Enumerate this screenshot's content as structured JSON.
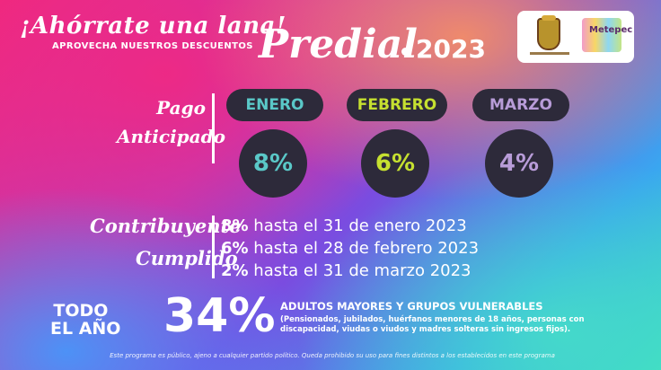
{
  "header": {
    "slogan": "¡Ahórrate una lana!",
    "subtitle": "APROVECHA NUESTROS DESCUENTOS",
    "title": "Predial",
    "year": "2023",
    "logo_text": "Metepec"
  },
  "pago_anticipado": {
    "label_line1": "Pago",
    "label_line2": "Anticipado",
    "months": [
      {
        "name": "ENERO",
        "discount": "8%",
        "color": "#5ac8c8"
      },
      {
        "name": "FEBRERO",
        "discount": "6%",
        "color": "#c6e030"
      },
      {
        "name": "MARZO",
        "discount": "4%",
        "color": "#b89cd8"
      }
    ]
  },
  "contribuyente_cumplido": {
    "label_line1": "Contribuyente",
    "label_line2": "Cumplido",
    "lines": [
      {
        "pct": "8%",
        "text": " hasta el 31 de enero 2023"
      },
      {
        "pct": "6%",
        "text": " hasta el 28 de febrero 2023"
      },
      {
        "pct": "2%",
        "text": " hasta el 31 de marzo 2023"
      }
    ]
  },
  "todo_el_ano": {
    "line1": "TODO",
    "line2": "EL AÑO",
    "percent": "34%",
    "heading": "ADULTOS MAYORES Y GRUPOS VULNERABLES",
    "detail": "(Pensionados, jubilados, huérfanos menores de 18 años, personas con discapacidad, viudas o viudos y madres solteras sin ingresos fijos)."
  },
  "footer": "Este programa es público, ajeno a cualquier partido político. Queda prohibido su uso para fines distintos a los establecidos en este programa"
}
